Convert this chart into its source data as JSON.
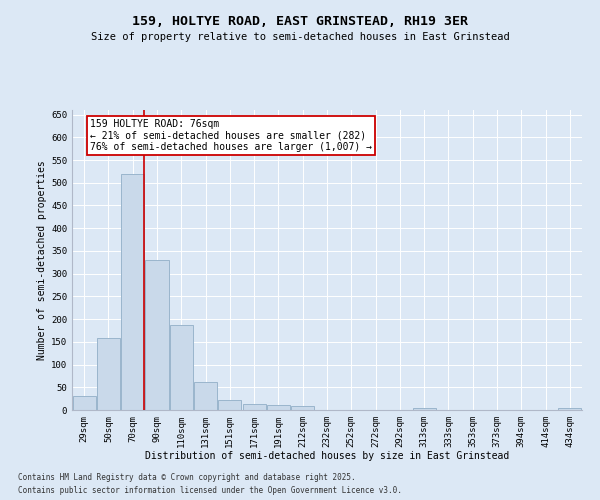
{
  "title1": "159, HOLTYE ROAD, EAST GRINSTEAD, RH19 3ER",
  "title2": "Size of property relative to semi-detached houses in East Grinstead",
  "xlabel": "Distribution of semi-detached houses by size in East Grinstead",
  "ylabel": "Number of semi-detached properties",
  "categories": [
    "29sqm",
    "50sqm",
    "70sqm",
    "90sqm",
    "110sqm",
    "131sqm",
    "151sqm",
    "171sqm",
    "191sqm",
    "212sqm",
    "232sqm",
    "252sqm",
    "272sqm",
    "292sqm",
    "313sqm",
    "333sqm",
    "353sqm",
    "373sqm",
    "394sqm",
    "414sqm",
    "434sqm"
  ],
  "values": [
    30,
    158,
    520,
    330,
    188,
    62,
    22,
    14,
    10,
    8,
    0,
    0,
    0,
    0,
    5,
    0,
    0,
    0,
    0,
    0,
    5
  ],
  "bar_color": "#c9d9ea",
  "bar_edge_color": "#9ab5cc",
  "vline_color": "#cc0000",
  "vline_x_index": 2,
  "annotation_line1": "159 HOLTYE ROAD: 76sqm",
  "annotation_line2": "← 21% of semi-detached houses are smaller (282)",
  "annotation_line3": "76% of semi-detached houses are larger (1,007) →",
  "annotation_box_color": "#ffffff",
  "annotation_box_edge": "#cc0000",
  "background_color": "#dce8f5",
  "plot_bg_color": "#dce8f5",
  "grid_color": "#ffffff",
  "footer1": "Contains HM Land Registry data © Crown copyright and database right 2025.",
  "footer2": "Contains public sector information licensed under the Open Government Licence v3.0.",
  "ylim": [
    0,
    660
  ],
  "yticks": [
    0,
    50,
    100,
    150,
    200,
    250,
    300,
    350,
    400,
    450,
    500,
    550,
    600,
    650
  ],
  "title1_fontsize": 9.5,
  "title2_fontsize": 7.5,
  "tick_fontsize": 6.5,
  "label_fontsize": 7,
  "footer_fontsize": 5.5,
  "annot_fontsize": 7
}
